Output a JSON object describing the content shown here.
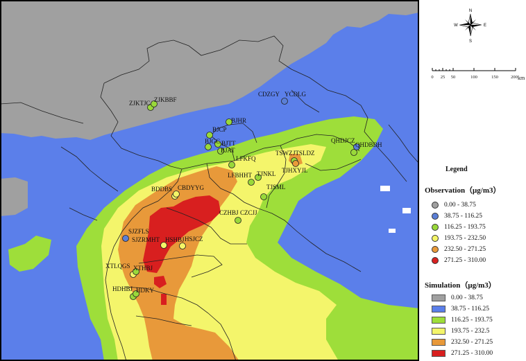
{
  "compass": {
    "north": "N",
    "south": "S",
    "east": "E",
    "west": "W"
  },
  "scale_bar": {
    "ticks": [
      "0",
      "25",
      "50",
      "100",
      "150",
      "200"
    ],
    "unit": "km"
  },
  "legend": {
    "title": "Legend",
    "observation": {
      "title": "Observation（μg/m3）",
      "items": [
        {
          "label": "0.00 - 38.75",
          "color": "#a0a0a0"
        },
        {
          "label": "38.75 - 116.25",
          "color": "#5b7fd6"
        },
        {
          "label": "116.25 - 193.75",
          "color": "#99d83a"
        },
        {
          "label": "193.75 - 232.50",
          "color": "#f4f567"
        },
        {
          "label": "232.50 - 271.25",
          "color": "#e89a3a"
        },
        {
          "label": "271.25 - 310.00",
          "color": "#d82020"
        }
      ]
    },
    "simulation": {
      "title": "Simulation（μg/m3）",
      "items": [
        {
          "label": "0.00 - 38.75",
          "color": "#a0a0a0"
        },
        {
          "label": "38.75 - 116.25",
          "color": "#5b7fea"
        },
        {
          "label": "116.25 - 193.75",
          "color": "#9ede3a"
        },
        {
          "label": "193.75 - 232.5",
          "color": "#f4f56b"
        },
        {
          "label": "232.50 - 271.25",
          "color": "#e8993a"
        },
        {
          "label": "271.25 - 310.00",
          "color": "#d81f1f"
        }
      ]
    }
  },
  "stations": [
    {
      "id": "ZJKTJC"
    },
    {
      "id": "ZJKBBF"
    },
    {
      "id": "CDZGY"
    },
    {
      "id": "YCDLG"
    },
    {
      "id": "BJHR"
    },
    {
      "id": "BJCP"
    },
    {
      "id": "BJGC"
    },
    {
      "id": "BJTT"
    },
    {
      "id": "BJAT"
    },
    {
      "id": "LFKFQ"
    },
    {
      "id": "LFBHHT"
    },
    {
      "id": "TJNKL"
    },
    {
      "id": "TSWZ"
    },
    {
      "id": "JTSLDZ"
    },
    {
      "id": "TJHXYJL"
    },
    {
      "id": "QHDJCZ"
    },
    {
      "id": "QHDBDH"
    },
    {
      "id": "TJSML"
    },
    {
      "id": "BDDBS"
    },
    {
      "id": "CBDYYG"
    },
    {
      "id": "CZHBJ"
    },
    {
      "id": "CZCJJ"
    },
    {
      "id": "SJZFLS"
    },
    {
      "id": "SJZRMHT"
    },
    {
      "id": "HSHBJ"
    },
    {
      "id": "HSJCZ"
    },
    {
      "id": "XTLQGS"
    },
    {
      "id": "XTHBJ"
    },
    {
      "id": "HDHBJ"
    },
    {
      "id": "HDKY"
    }
  ]
}
